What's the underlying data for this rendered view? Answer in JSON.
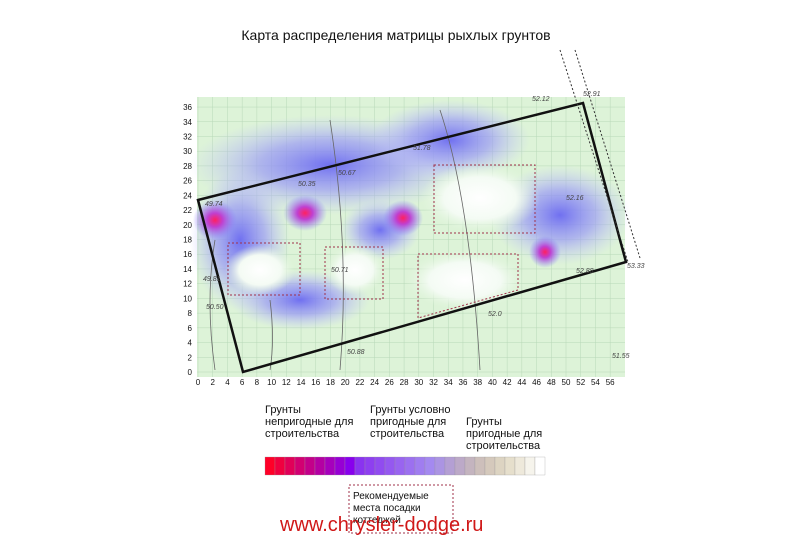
{
  "title": "Карта  распределения матрицы рыхлых грунтов",
  "x_ticks": [
    "0",
    "2",
    "4",
    "6",
    "8",
    "10",
    "12",
    "14",
    "16",
    "18",
    "20",
    "22",
    "24",
    "26",
    "28",
    "30",
    "32",
    "34",
    "36",
    "38",
    "40",
    "42",
    "44",
    "46",
    "48",
    "50",
    "52",
    "54",
    "56"
  ],
  "y_ticks": [
    "0",
    "2",
    "4",
    "6",
    "8",
    "10",
    "12",
    "14",
    "16",
    "18",
    "20",
    "22",
    "24",
    "26",
    "28",
    "30",
    "32",
    "34",
    "36"
  ],
  "spot_labels": [
    "52.91",
    "52.12",
    "49.74",
    "50.35",
    "50.67",
    "51.78",
    "52.16",
    "53.33",
    "52.88",
    "50.71",
    "49.81",
    "50.50",
    "50.88",
    "52.0",
    "51.55"
  ],
  "legend": {
    "unsuitable": "Грунты непригодные для строительства",
    "conditional": "Грунты условно пригодные для строительства",
    "suitable": "Грунты пригодные для строительства",
    "recommended": "Рекомендуемые места посадки коттеджей"
  },
  "watermark": "www.chrysler-dodge.ru"
}
